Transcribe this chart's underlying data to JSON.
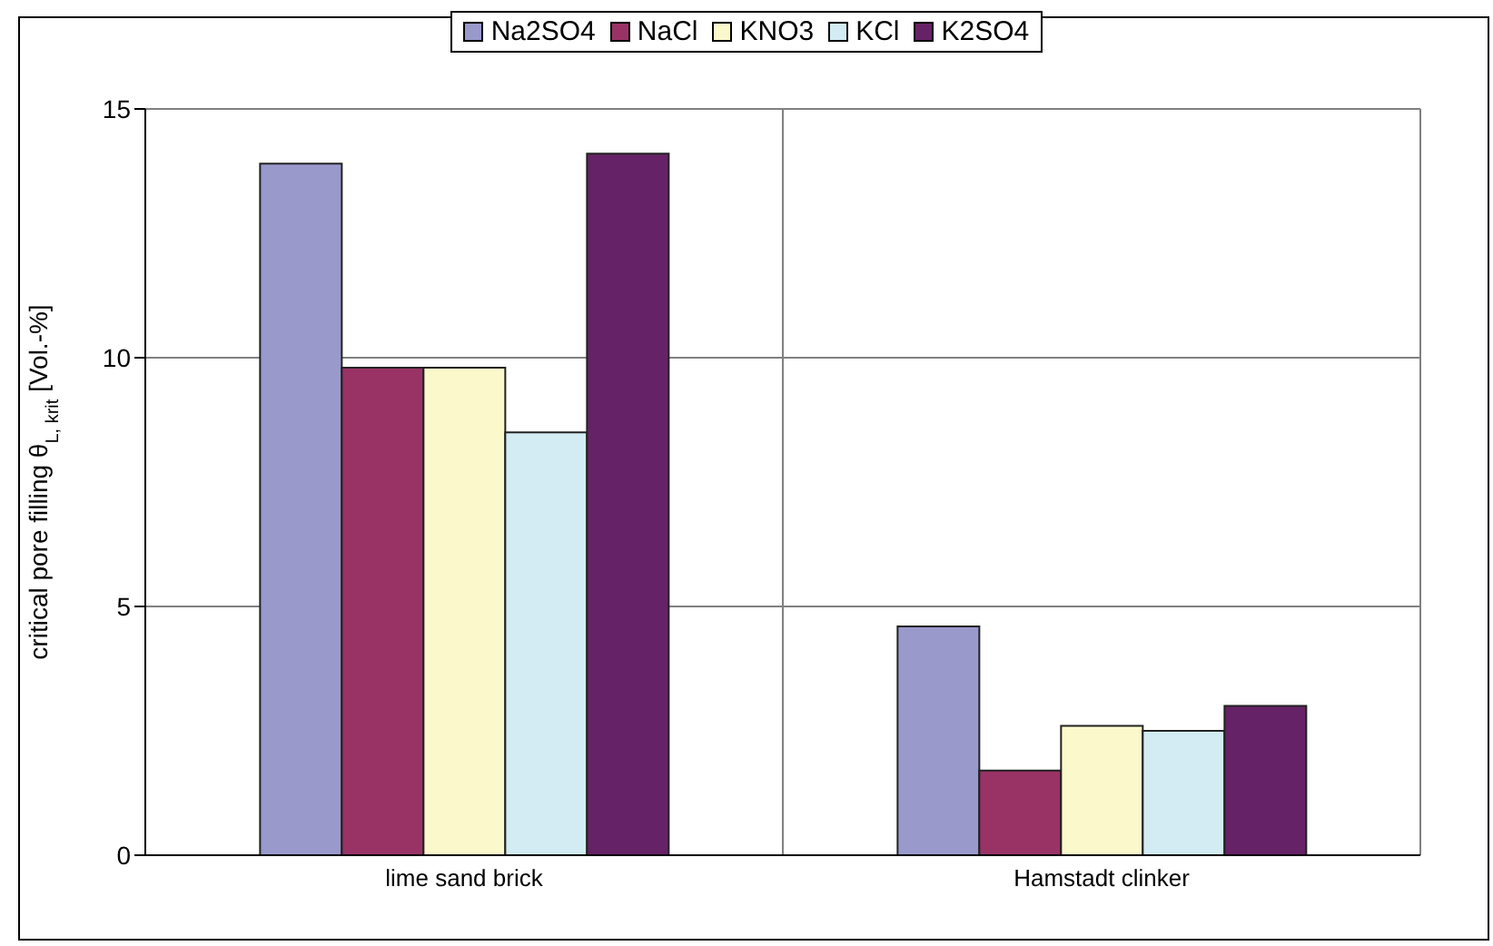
{
  "chart_data": {
    "type": "bar",
    "ylabel": "critical pore filling θ$_{L, krit}$ [Vol.-%]",
    "categories": [
      "lime sand brick",
      "Hamstadt clinker"
    ],
    "series": [
      {
        "name": "Na2SO4",
        "color": "#9999cc",
        "values": [
          13.9,
          4.6
        ]
      },
      {
        "name": "NaCl",
        "color": "#993366",
        "values": [
          9.8,
          1.7
        ]
      },
      {
        "name": "KNO3",
        "color": "#fbf8cc",
        "values": [
          9.8,
          2.6
        ]
      },
      {
        "name": "KCl",
        "color": "#d3ecf3",
        "values": [
          8.5,
          2.5
        ]
      },
      {
        "name": "K2SO4",
        "color": "#662266",
        "values": [
          14.1,
          3.0
        ]
      }
    ],
    "ylim": [
      0,
      15
    ],
    "yticks": [
      0,
      5,
      10,
      15
    ],
    "grid": true,
    "legend": "top"
  }
}
